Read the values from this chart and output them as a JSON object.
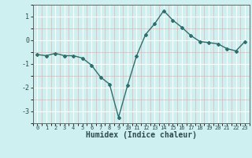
{
  "x": [
    0,
    1,
    2,
    3,
    4,
    5,
    6,
    7,
    8,
    9,
    10,
    11,
    12,
    13,
    14,
    15,
    16,
    17,
    18,
    19,
    20,
    21,
    22,
    23
  ],
  "y": [
    -0.6,
    -0.65,
    -0.55,
    -0.65,
    -0.65,
    -0.75,
    -1.05,
    -1.55,
    -1.85,
    -3.25,
    -1.9,
    -0.65,
    0.25,
    0.7,
    1.25,
    0.85,
    0.55,
    0.2,
    -0.05,
    -0.1,
    -0.15,
    -0.35,
    -0.45,
    -0.05
  ],
  "xlabel": "Humidex (Indice chaleur)",
  "ylim": [
    -3.5,
    1.5
  ],
  "xlim": [
    -0.5,
    23.5
  ],
  "yticks": [
    -3,
    -2,
    -1,
    0,
    1
  ],
  "xticks": [
    0,
    1,
    2,
    3,
    4,
    5,
    6,
    7,
    8,
    9,
    10,
    11,
    12,
    13,
    14,
    15,
    16,
    17,
    18,
    19,
    20,
    21,
    22,
    23
  ],
  "line_color": "#2d6e6e",
  "marker": "D",
  "marker_size": 2.0,
  "bg_color": "#cff0f0",
  "grid_major_color": "#ffffff",
  "grid_minor_color": "#e8b0b0"
}
